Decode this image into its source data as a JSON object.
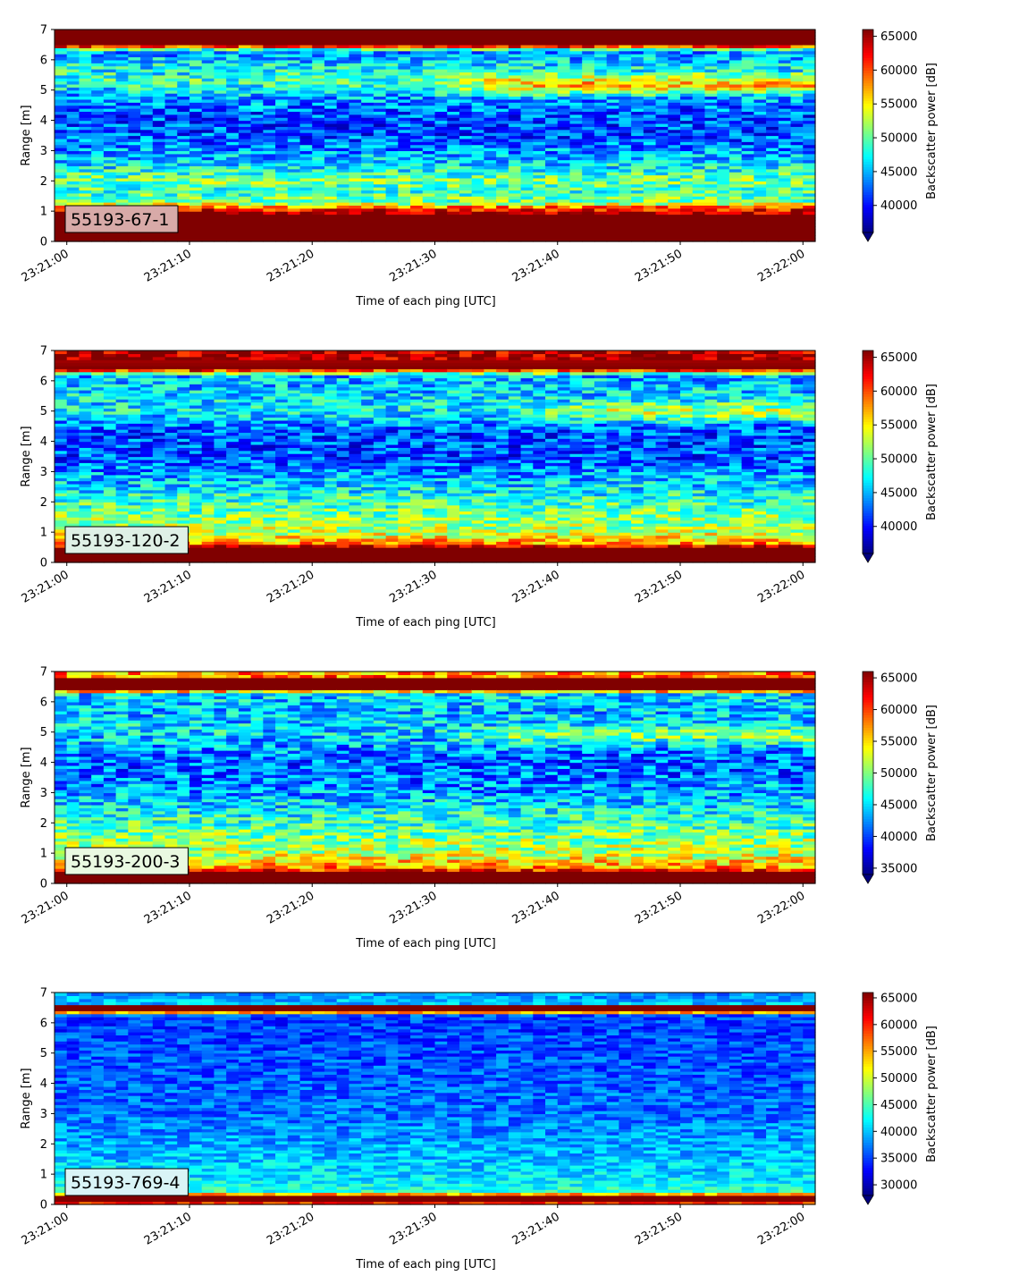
{
  "chart_data": [
    {
      "type": "heatmap",
      "title": "",
      "xlabel": "Time of each ping [UTC]",
      "ylabel": "Range [m]",
      "x_ticks": [
        "23:21:00",
        "23:21:10",
        "23:21:20",
        "23:21:30",
        "23:21:40",
        "23:21:50",
        "23:22:00"
      ],
      "x_range_seconds": [
        -1,
        61
      ],
      "y_ticks": [
        0,
        1,
        2,
        3,
        4,
        5,
        6,
        7
      ],
      "ylim": [
        0,
        7
      ],
      "colorbar": {
        "label": "Backscatter power [dB]",
        "ticks": [
          40000,
          45000,
          50000,
          55000,
          60000,
          65000
        ],
        "range": [
          36000,
          66000
        ],
        "extend": "min",
        "colormap": "jet"
      },
      "annotation": {
        "text": "55193-67-1",
        "background": "#d8aaa8"
      },
      "profile": [
        {
          "range_m": 0.0,
          "value": 66000
        },
        {
          "range_m": 0.25,
          "value": 66000
        },
        {
          "range_m": 0.9,
          "value": 66000
        },
        {
          "range_m": 1.1,
          "value": 61000
        },
        {
          "range_m": 1.3,
          "value": 51000
        },
        {
          "range_m": 1.7,
          "value": 49000
        },
        {
          "range_m": 2.0,
          "value": 51000
        },
        {
          "range_m": 2.6,
          "value": 46000
        },
        {
          "range_m": 3.5,
          "value": 42000
        },
        {
          "range_m": 4.2,
          "value": 42000
        },
        {
          "range_m": 4.8,
          "value": 45000
        },
        {
          "range_m": 5.3,
          "value": 49000
        },
        {
          "range_m": 5.8,
          "value": 47000
        },
        {
          "range_m": 6.3,
          "value": 44000
        },
        {
          "range_m": 6.5,
          "value": 66000
        },
        {
          "range_m": 7.0,
          "value": 66000
        }
      ],
      "trend_feature": {
        "range_m": 5.2,
        "start_s": 28,
        "value": 57000
      },
      "noise": 4500
    },
    {
      "type": "heatmap",
      "title": "",
      "xlabel": "Time of each ping [UTC]",
      "ylabel": "Range [m]",
      "x_ticks": [
        "23:21:00",
        "23:21:10",
        "23:21:20",
        "23:21:30",
        "23:21:40",
        "23:21:50",
        "23:22:00"
      ],
      "x_range_seconds": [
        -1,
        61
      ],
      "y_ticks": [
        0,
        1,
        2,
        3,
        4,
        5,
        6,
        7
      ],
      "ylim": [
        0,
        7
      ],
      "colorbar": {
        "label": "Backscatter power [dB]",
        "ticks": [
          40000,
          45000,
          50000,
          55000,
          60000,
          65000
        ],
        "range": [
          36000,
          66000
        ],
        "extend": "min",
        "colormap": "jet"
      },
      "annotation": {
        "text": "55193-120-2",
        "background": "#dff0e6"
      },
      "profile": [
        {
          "range_m": 0.0,
          "value": 66000
        },
        {
          "range_m": 0.5,
          "value": 66000
        },
        {
          "range_m": 0.65,
          "value": 58000
        },
        {
          "range_m": 1.0,
          "value": 53000
        },
        {
          "range_m": 1.5,
          "value": 51000
        },
        {
          "range_m": 2.0,
          "value": 49000
        },
        {
          "range_m": 2.8,
          "value": 45000
        },
        {
          "range_m": 3.5,
          "value": 42000
        },
        {
          "range_m": 4.3,
          "value": 42000
        },
        {
          "range_m": 5.0,
          "value": 47000
        },
        {
          "range_m": 5.6,
          "value": 46000
        },
        {
          "range_m": 6.2,
          "value": 45000
        },
        {
          "range_m": 6.4,
          "value": 66000
        },
        {
          "range_m": 7.0,
          "value": 64000
        }
      ],
      "trend_feature": {
        "range_m": 5.0,
        "start_s": 36,
        "value": 53000
      },
      "noise": 4500
    },
    {
      "type": "heatmap",
      "title": "",
      "xlabel": "Time of each ping [UTC]",
      "ylabel": "Range [m]",
      "x_ticks": [
        "23:21:00",
        "23:21:10",
        "23:21:20",
        "23:21:30",
        "23:21:40",
        "23:21:50",
        "23:22:00"
      ],
      "x_range_seconds": [
        -1,
        61
      ],
      "y_ticks": [
        0,
        1,
        2,
        3,
        4,
        5,
        6,
        7
      ],
      "ylim": [
        0,
        7
      ],
      "colorbar": {
        "label": "Backscatter power [dB]",
        "ticks": [
          35000,
          40000,
          45000,
          50000,
          55000,
          60000,
          65000
        ],
        "range": [
          34000,
          66000
        ],
        "extend": "min",
        "colormap": "jet"
      },
      "annotation": {
        "text": "55193-200-3",
        "background": "#e9f9e1"
      },
      "profile": [
        {
          "range_m": 0.0,
          "value": 66000
        },
        {
          "range_m": 0.35,
          "value": 66000
        },
        {
          "range_m": 0.5,
          "value": 58000
        },
        {
          "range_m": 1.0,
          "value": 52000
        },
        {
          "range_m": 1.6,
          "value": 50000
        },
        {
          "range_m": 2.2,
          "value": 47000
        },
        {
          "range_m": 3.0,
          "value": 43000
        },
        {
          "range_m": 4.0,
          "value": 41000
        },
        {
          "range_m": 5.0,
          "value": 45000
        },
        {
          "range_m": 5.8,
          "value": 44000
        },
        {
          "range_m": 6.3,
          "value": 45000
        },
        {
          "range_m": 6.4,
          "value": 66000
        },
        {
          "range_m": 6.75,
          "value": 66000
        },
        {
          "range_m": 6.85,
          "value": 58000
        },
        {
          "range_m": 7.0,
          "value": 57000
        }
      ],
      "trend_feature": {
        "range_m": 4.9,
        "start_s": 30,
        "value": 50000
      },
      "noise": 5000
    },
    {
      "type": "heatmap",
      "title": "",
      "xlabel": "Time of each ping [UTC]",
      "ylabel": "Range [m]",
      "x_ticks": [
        "23:21:00",
        "23:21:10",
        "23:21:20",
        "23:21:30",
        "23:21:40",
        "23:21:50",
        "23:22:00"
      ],
      "x_range_seconds": [
        -1,
        61
      ],
      "y_ticks": [
        0,
        1,
        2,
        3,
        4,
        5,
        6,
        7
      ],
      "ylim": [
        0,
        7
      ],
      "colorbar": {
        "label": "Backscatter power [dB]",
        "ticks": [
          30000,
          35000,
          40000,
          45000,
          50000,
          55000,
          60000,
          65000
        ],
        "range": [
          28000,
          66000
        ],
        "extend": "min",
        "colormap": "jet"
      },
      "annotation": {
        "text": "55193-769-4",
        "background": "#d9f4f6"
      },
      "profile": [
        {
          "range_m": 0.0,
          "value": 55000
        },
        {
          "range_m": 0.12,
          "value": 66000
        },
        {
          "range_m": 0.3,
          "value": 66000
        },
        {
          "range_m": 0.4,
          "value": 44000
        },
        {
          "range_m": 1.0,
          "value": 41000
        },
        {
          "range_m": 2.0,
          "value": 39000
        },
        {
          "range_m": 3.0,
          "value": 37000
        },
        {
          "range_m": 4.5,
          "value": 36000
        },
        {
          "range_m": 6.0,
          "value": 35000
        },
        {
          "range_m": 6.3,
          "value": 36000
        },
        {
          "range_m": 6.38,
          "value": 66000
        },
        {
          "range_m": 6.55,
          "value": 66000
        },
        {
          "range_m": 6.65,
          "value": 40000
        },
        {
          "range_m": 7.0,
          "value": 38000
        }
      ],
      "trend_feature": null,
      "noise": 3500
    }
  ]
}
